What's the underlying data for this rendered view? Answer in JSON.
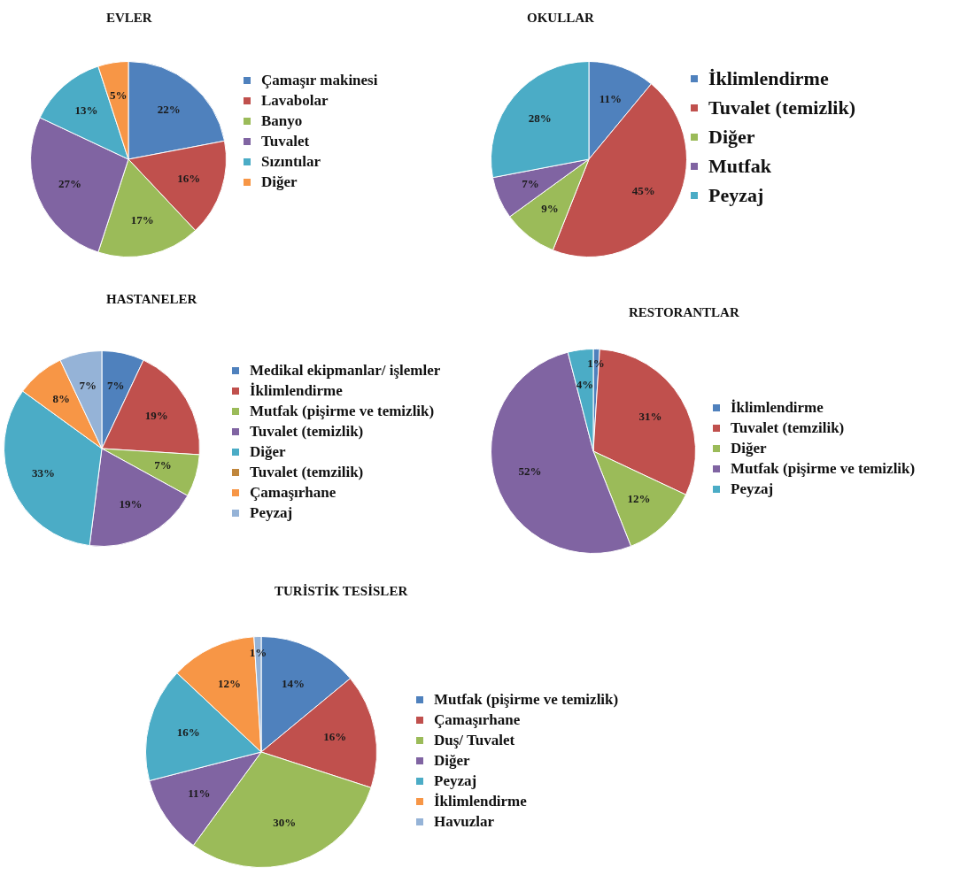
{
  "chart_data": [
    {
      "type": "pie",
      "title": "EVLER",
      "categories": [
        "Çamaşır makinesi",
        "Lavabolar",
        "Banyo",
        "Tuvalet",
        "Sızıntılar",
        "Diğer"
      ],
      "values": [
        22,
        16,
        17,
        27,
        13,
        5
      ],
      "value_labels": [
        "22%",
        "16%",
        "17%",
        "27%",
        "13%",
        "5%"
      ],
      "colors": [
        "#4f81bd",
        "#c0504d",
        "#9bbb59",
        "#8064a2",
        "#4bacc6",
        "#f79646"
      ],
      "legend": "right"
    },
    {
      "type": "pie",
      "title": "OKULLAR",
      "categories": [
        "İklimlendirme",
        "Tuvalet (temizlik)",
        "Diğer",
        "Mutfak",
        "Peyzaj"
      ],
      "values": [
        11,
        45,
        9,
        7,
        28
      ],
      "value_labels": [
        "11%",
        "45%",
        "9%",
        "7%",
        "28%"
      ],
      "colors": [
        "#4f81bd",
        "#c0504d",
        "#9bbb59",
        "#8064a2",
        "#4bacc6"
      ],
      "legend": "right"
    },
    {
      "type": "pie",
      "title": "HASTANELER",
      "categories": [
        "Medikal ekipmanlar/ işlemler",
        "İklimlendirme",
        "Mutfak (pişirme ve temizlik)",
        "Tuvalet (temizlik)",
        "Diğer",
        "Tuvalet (temzilik)",
        "Çamaşırhane",
        "Peyzaj"
      ],
      "values": [
        7,
        19,
        7,
        19,
        33,
        0,
        8,
        7
      ],
      "value_labels": [
        "7%",
        "19%",
        "7%",
        "19%",
        "33%",
        null,
        "8%",
        "7%"
      ],
      "colors": [
        "#4f81bd",
        "#c0504d",
        "#9bbb59",
        "#8064a2",
        "#4bacc6",
        "#c0863c",
        "#f79646",
        "#95b3d7"
      ],
      "legend": "right"
    },
    {
      "type": "pie",
      "title": "RESTORANTLAR",
      "categories": [
        "İklimlendirme",
        "Tuvalet (temzilik)",
        "Diğer",
        "Mutfak (pişirme ve temizlik)",
        "Peyzaj"
      ],
      "values": [
        1,
        31,
        12,
        52,
        4
      ],
      "value_labels": [
        "1%",
        "31%",
        "12%",
        "52%",
        "4%"
      ],
      "colors": [
        "#4f81bd",
        "#c0504d",
        "#9bbb59",
        "#8064a2",
        "#4bacc6"
      ],
      "legend": "right"
    },
    {
      "type": "pie",
      "title": "TURİSTİK TESİSLER",
      "categories": [
        "Mutfak (pişirme ve temizlik)",
        "Çamaşırhane",
        "Duş/ Tuvalet",
        "Diğer",
        "Peyzaj",
        "İklimlendirme",
        "Havuzlar"
      ],
      "values": [
        14,
        16,
        30,
        11,
        16,
        12,
        1
      ],
      "value_labels": [
        "14%",
        "16%",
        "30%",
        "11%",
        "16%",
        "12%",
        "1%"
      ],
      "colors": [
        "#4f81bd",
        "#c0504d",
        "#9bbb59",
        "#8064a2",
        "#4bacc6",
        "#f79646",
        "#95b3d7"
      ],
      "legend": "right"
    }
  ]
}
